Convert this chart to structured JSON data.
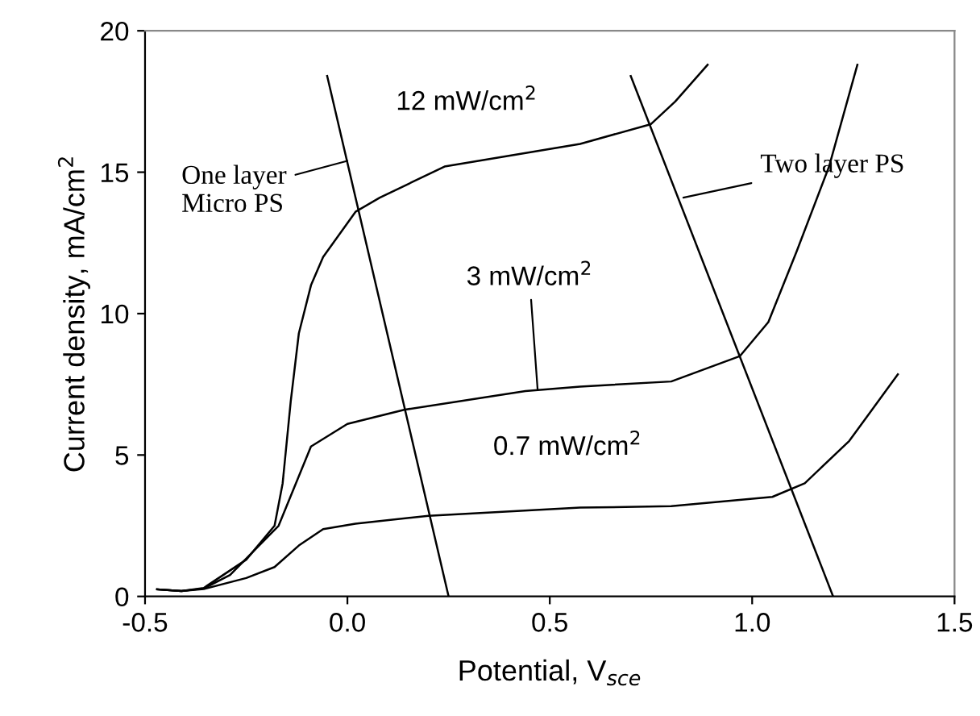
{
  "chart_data": {
    "type": "line",
    "xlabel": "Potential, V$_{sce}$",
    "ylabel": "Current density, mA/cm$^{2}$",
    "xlim": [
      -0.5,
      1.5
    ],
    "ylim": [
      0,
      20
    ],
    "xticks": [
      {
        "value": -0.5,
        "label": "-0.5"
      },
      {
        "value": 0,
        "label": "0.0"
      },
      {
        "value": 0.5,
        "label": "0.5"
      },
      {
        "value": 1,
        "label": "1.0"
      },
      {
        "value": 1.5,
        "label": "1.5"
      }
    ],
    "yticks": [
      0,
      5,
      10,
      15,
      20
    ],
    "grid": false,
    "legend": false,
    "marker": "none",
    "line_style": "solid",
    "series": [
      {
        "color": "#000000",
        "x": [
          -0.47,
          -0.41,
          -0.355,
          -0.25,
          -0.18,
          -0.16,
          -0.14,
          -0.12,
          -0.09,
          -0.06,
          0.02,
          0.08,
          0.24,
          0.575,
          0.75,
          0.81,
          0.89
        ],
        "values": [
          0.25,
          0.19,
          0.3,
          1.3,
          2.5,
          4.0,
          6.9,
          9.3,
          11.0,
          12.0,
          13.6,
          14.1,
          15.2,
          16.0,
          16.7,
          17.5,
          18.8
        ]
      },
      {
        "color": "#000000",
        "x": [
          -0.47,
          -0.41,
          -0.355,
          -0.29,
          -0.17,
          -0.09,
          0.0,
          0.14,
          0.44,
          0.575,
          0.8,
          0.97,
          1.04,
          1.11,
          1.19,
          1.26
        ],
        "values": [
          0.25,
          0.19,
          0.28,
          0.76,
          2.5,
          5.3,
          6.1,
          6.6,
          7.26,
          7.42,
          7.6,
          8.5,
          9.7,
          12.2,
          15.2,
          18.8
        ]
      },
      {
        "color": "#000000",
        "x": [
          -0.47,
          -0.41,
          -0.355,
          -0.25,
          -0.18,
          -0.12,
          -0.06,
          0.02,
          0.2,
          0.575,
          0.8,
          1.05,
          1.13,
          1.24,
          1.36
        ],
        "values": [
          0.25,
          0.19,
          0.26,
          0.65,
          1.04,
          1.8,
          2.38,
          2.57,
          2.85,
          3.14,
          3.19,
          3.52,
          4.0,
          5.5,
          7.85
        ]
      },
      {
        "color": "#000000",
        "x": [
          -0.05,
          0.25
        ],
        "values": [
          18.4,
          0
        ]
      },
      {
        "color": "#000000",
        "x": [
          0.7,
          1.2
        ],
        "values": [
          18.4,
          0
        ]
      }
    ],
    "annotations": [
      "12 mW/cm$^{2}$",
      "0.7 mW/cm$^{2}$",
      {
        "text": "3 mW/cm$^{2}$",
        "x": 0.47,
        "y": 7.3
      },
      {
        "text": "One layer\nMicro PS",
        "x": 0.0,
        "y": 15.4
      },
      {
        "text": "Two layer PS",
        "x": 0.83,
        "y": 14.1
      }
    ]
  }
}
